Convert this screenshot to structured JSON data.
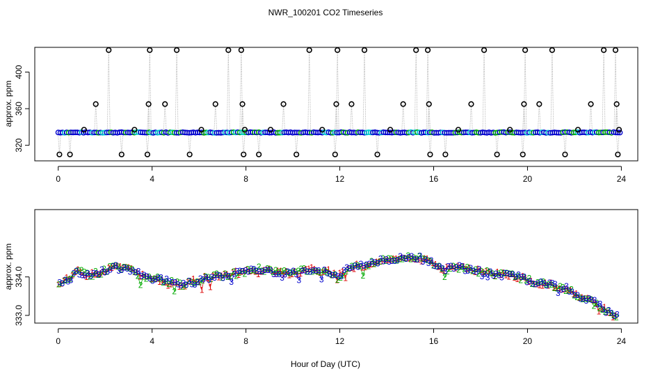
{
  "chart_data": [
    {
      "type": "scatter",
      "title": "NWR_100201  CO2 Timeseries",
      "xlabel": "",
      "ylabel": "approx. ppm",
      "xlim": [
        -1,
        24.7
      ],
      "ylim": [
        303,
        427
      ],
      "xticks": [
        0,
        4,
        8,
        12,
        16,
        20,
        24
      ],
      "xtick_labels": [
        "0",
        "4",
        "8",
        "12",
        "16",
        "20",
        "24"
      ],
      "yticks": [
        320,
        360,
        400
      ],
      "ytick_labels": [
        "320",
        "360",
        "400"
      ],
      "baseline": 334,
      "spikes": [
        {
          "x": 0.05,
          "y": 310
        },
        {
          "x": 0.5,
          "y": 310
        },
        {
          "x": 1.1,
          "y": 337
        },
        {
          "x": 1.6,
          "y": 365
        },
        {
          "x": 2.15,
          "y": 424
        },
        {
          "x": 2.7,
          "y": 310
        },
        {
          "x": 3.25,
          "y": 337
        },
        {
          "x": 3.8,
          "y": 310
        },
        {
          "x": 3.85,
          "y": 365
        },
        {
          "x": 3.9,
          "y": 424
        },
        {
          "x": 4.55,
          "y": 365
        },
        {
          "x": 5.05,
          "y": 424
        },
        {
          "x": 5.6,
          "y": 310
        },
        {
          "x": 6.1,
          "y": 337
        },
        {
          "x": 6.7,
          "y": 365
        },
        {
          "x": 7.25,
          "y": 424
        },
        {
          "x": 7.8,
          "y": 424
        },
        {
          "x": 7.85,
          "y": 365
        },
        {
          "x": 7.9,
          "y": 310
        },
        {
          "x": 7.95,
          "y": 337
        },
        {
          "x": 8.55,
          "y": 310
        },
        {
          "x": 9.05,
          "y": 337
        },
        {
          "x": 9.6,
          "y": 365
        },
        {
          "x": 10.15,
          "y": 310
        },
        {
          "x": 10.7,
          "y": 424
        },
        {
          "x": 11.25,
          "y": 337
        },
        {
          "x": 11.8,
          "y": 310
        },
        {
          "x": 11.85,
          "y": 365
        },
        {
          "x": 11.9,
          "y": 424
        },
        {
          "x": 12.5,
          "y": 365
        },
        {
          "x": 13.05,
          "y": 424
        },
        {
          "x": 13.6,
          "y": 310
        },
        {
          "x": 14.15,
          "y": 337
        },
        {
          "x": 14.7,
          "y": 365
        },
        {
          "x": 15.25,
          "y": 424
        },
        {
          "x": 15.75,
          "y": 424
        },
        {
          "x": 15.8,
          "y": 365
        },
        {
          "x": 15.85,
          "y": 310
        },
        {
          "x": 16.5,
          "y": 310
        },
        {
          "x": 17.05,
          "y": 337
        },
        {
          "x": 17.6,
          "y": 365
        },
        {
          "x": 18.15,
          "y": 424
        },
        {
          "x": 18.7,
          "y": 310
        },
        {
          "x": 19.25,
          "y": 337
        },
        {
          "x": 19.8,
          "y": 310
        },
        {
          "x": 19.85,
          "y": 365
        },
        {
          "x": 19.9,
          "y": 424
        },
        {
          "x": 20.5,
          "y": 365
        },
        {
          "x": 21.05,
          "y": 424
        },
        {
          "x": 21.6,
          "y": 310
        },
        {
          "x": 22.15,
          "y": 337
        },
        {
          "x": 22.7,
          "y": 365
        },
        {
          "x": 23.25,
          "y": 424
        },
        {
          "x": 23.75,
          "y": 424
        },
        {
          "x": 23.8,
          "y": 365
        },
        {
          "x": 23.85,
          "y": 310
        },
        {
          "x": 23.9,
          "y": 337
        }
      ]
    },
    {
      "type": "scatter",
      "title": "",
      "xlabel": "Hour of Day (UTC)",
      "ylabel": "approx. ppm",
      "xlim": [
        -1,
        24.7
      ],
      "ylim": [
        332.8,
        335.75
      ],
      "xticks": [
        0,
        4,
        8,
        12,
        16,
        20,
        24
      ],
      "xtick_labels": [
        "0",
        "4",
        "8",
        "12",
        "16",
        "20",
        "24"
      ],
      "yticks": [
        333.0,
        334.0
      ],
      "ytick_labels": [
        "333.0",
        "334.0"
      ],
      "series_marks": [
        "1",
        "2",
        "3"
      ],
      "series_colors": [
        "#dd0000",
        "#00aa00",
        "#0000cc"
      ],
      "trend": [
        {
          "x": 0,
          "y": 333.85
        },
        {
          "x": 0.5,
          "y": 333.95
        },
        {
          "x": 0.8,
          "y": 334.15
        },
        {
          "x": 1.2,
          "y": 334.05
        },
        {
          "x": 1.7,
          "y": 334.1
        },
        {
          "x": 2.3,
          "y": 334.25
        },
        {
          "x": 3.0,
          "y": 334.2
        },
        {
          "x": 3.5,
          "y": 334.05
        },
        {
          "x": 4.2,
          "y": 333.95
        },
        {
          "x": 4.8,
          "y": 333.85
        },
        {
          "x": 5.3,
          "y": 333.78
        },
        {
          "x": 5.8,
          "y": 333.9
        },
        {
          "x": 6.5,
          "y": 334.0
        },
        {
          "x": 7.2,
          "y": 334.05
        },
        {
          "x": 7.9,
          "y": 334.12
        },
        {
          "x": 8.5,
          "y": 334.2
        },
        {
          "x": 9.2,
          "y": 334.12
        },
        {
          "x": 10.0,
          "y": 334.1
        },
        {
          "x": 10.8,
          "y": 334.2
        },
        {
          "x": 11.5,
          "y": 334.15
        },
        {
          "x": 11.9,
          "y": 333.98
        },
        {
          "x": 12.4,
          "y": 334.25
        },
        {
          "x": 13.0,
          "y": 334.3
        },
        {
          "x": 13.6,
          "y": 334.4
        },
        {
          "x": 14.2,
          "y": 334.45
        },
        {
          "x": 14.8,
          "y": 334.5
        },
        {
          "x": 15.3,
          "y": 334.5
        },
        {
          "x": 15.9,
          "y": 334.38
        },
        {
          "x": 16.5,
          "y": 334.2
        },
        {
          "x": 17.2,
          "y": 334.25
        },
        {
          "x": 17.8,
          "y": 334.15
        },
        {
          "x": 18.4,
          "y": 334.1
        },
        {
          "x": 19.0,
          "y": 334.05
        },
        {
          "x": 19.6,
          "y": 334.0
        },
        {
          "x": 20.3,
          "y": 333.85
        },
        {
          "x": 20.9,
          "y": 333.8
        },
        {
          "x": 21.6,
          "y": 333.7
        },
        {
          "x": 22.2,
          "y": 333.5
        },
        {
          "x": 22.8,
          "y": 333.35
        },
        {
          "x": 23.3,
          "y": 333.15
        },
        {
          "x": 23.8,
          "y": 333.0
        }
      ]
    }
  ]
}
